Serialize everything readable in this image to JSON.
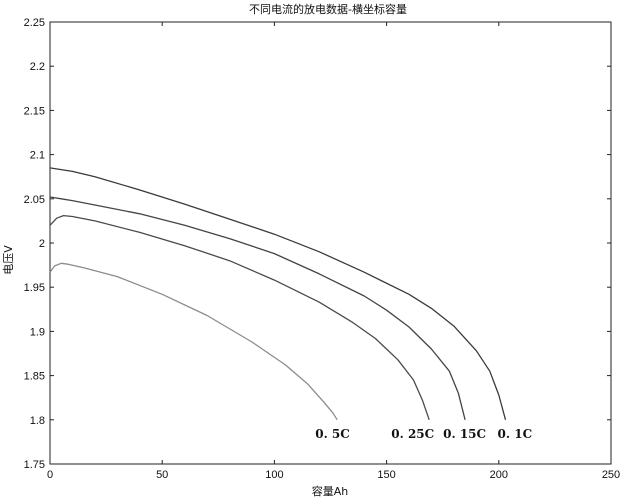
{
  "chart_data": {
    "type": "line",
    "title": "不同电流的放电数据-横坐标容量",
    "xlabel": "容量Ah",
    "ylabel": "电压V",
    "xlim": [
      0,
      250
    ],
    "ylim": [
      1.75,
      2.25
    ],
    "xticks": [
      "0",
      "50",
      "100",
      "150",
      "200",
      "250"
    ],
    "yticks": [
      "1.75",
      "1.8",
      "1.85",
      "1.9",
      "1.95",
      "2",
      "2.05",
      "2.1",
      "2.15",
      "2.2",
      "2.25"
    ],
    "grid": false,
    "legend": "none",
    "series": [
      {
        "name": "0. 1C",
        "color": "#3a3a3a",
        "x": [
          0,
          5,
          10,
          20,
          40,
          60,
          80,
          100,
          120,
          140,
          160,
          170,
          180,
          190,
          196,
          200,
          203
        ],
        "y": [
          2.085,
          2.083,
          2.081,
          2.075,
          2.06,
          2.044,
          2.027,
          2.01,
          1.99,
          1.967,
          1.942,
          1.926,
          1.906,
          1.878,
          1.855,
          1.828,
          1.8
        ]
      },
      {
        "name": "0. 15C",
        "color": "#444444",
        "x": [
          0,
          5,
          10,
          20,
          40,
          60,
          80,
          100,
          120,
          140,
          150,
          160,
          170,
          178,
          182,
          185
        ],
        "y": [
          2.052,
          2.05,
          2.048,
          2.043,
          2.033,
          2.02,
          2.005,
          1.988,
          1.965,
          1.94,
          1.924,
          1.905,
          1.88,
          1.855,
          1.83,
          1.8
        ]
      },
      {
        "name": "0. 25C",
        "color": "#4a4a4a",
        "x": [
          0,
          3,
          6,
          10,
          20,
          40,
          60,
          80,
          100,
          120,
          135,
          145,
          155,
          162,
          166,
          169
        ],
        "y": [
          2.02,
          2.028,
          2.031,
          2.03,
          2.025,
          2.012,
          1.997,
          1.98,
          1.958,
          1.933,
          1.91,
          1.892,
          1.868,
          1.845,
          1.822,
          1.8
        ]
      },
      {
        "name": "0. 5C",
        "color": "#8c8c8c",
        "x": [
          0,
          2,
          5,
          8,
          15,
          30,
          50,
          70,
          90,
          105,
          115,
          122,
          126,
          128
        ],
        "y": [
          1.967,
          1.974,
          1.977,
          1.976,
          1.972,
          1.962,
          1.942,
          1.918,
          1.888,
          1.862,
          1.84,
          1.82,
          1.808,
          1.8
        ]
      }
    ]
  }
}
